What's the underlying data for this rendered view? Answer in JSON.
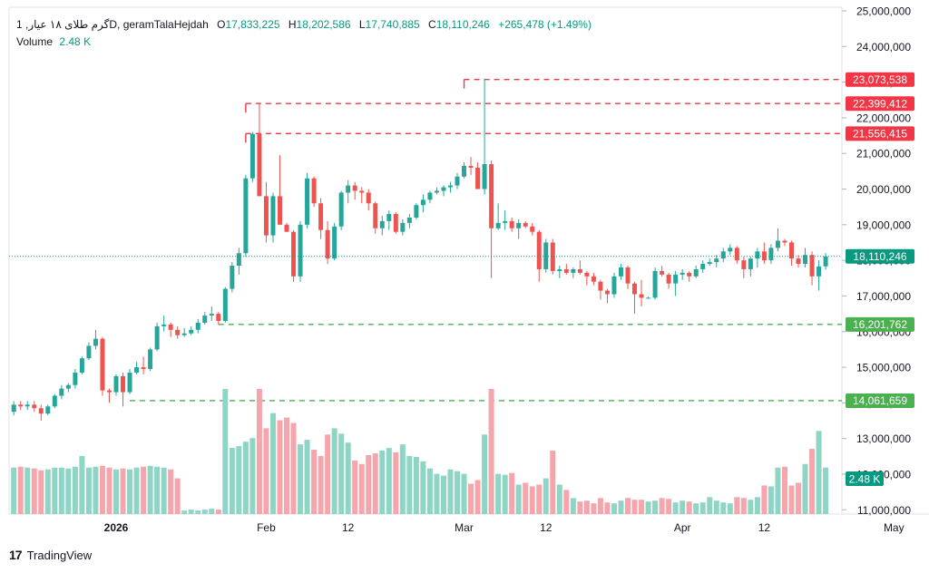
{
  "header": {
    "symbol": "گرم طلای ۱۸ عیار, 1D, geramTalaHejdah",
    "open_label": "O",
    "open": "17,833,225",
    "high_label": "H",
    "high": "18,202,586",
    "low_label": "L",
    "low": "17,740,885",
    "close_label": "C",
    "close": "18,110,246",
    "change": "+265,478 (+1.49%)",
    "volume_label": "Volume",
    "volume": "2.48 K"
  },
  "footer": {
    "brand": "TradingView",
    "logo_icon": "tradingview-logo-icon"
  },
  "colors": {
    "up": "#26a69a",
    "down": "#ef5350",
    "up_vol": "#8fd5c6",
    "down_vol": "#f6a5ac",
    "resistance": "#f23645",
    "support": "#4caf50",
    "last": "#089981"
  },
  "chart_data": {
    "type": "candlestick",
    "ylim": [
      10600000,
      25000000
    ],
    "y_ticks": [
      11000000,
      12000000,
      13000000,
      14000000,
      15000000,
      16000000,
      17000000,
      18000000,
      19000000,
      20000000,
      21000000,
      22000000,
      23000000,
      24000000,
      25000000
    ],
    "y_tick_labels": [
      "11,000,000",
      "12,000,000",
      "13,000,000",
      "14,000,000",
      "15,000,000",
      "16,000,000",
      "17,000,000",
      "18,000,000",
      "19,000,000",
      "20,000,000",
      "21,000,000",
      "22,000,000",
      "23,000,000",
      "24,000,000",
      "25,000,000"
    ],
    "x_labels": [
      {
        "label": "2026",
        "index": 15,
        "bold": true
      },
      {
        "label": "Feb",
        "index": 37
      },
      {
        "label": "12",
        "index": 49
      },
      {
        "label": "Mar",
        "index": 66
      },
      {
        "label": "12",
        "index": 78
      },
      {
        "label": "Apr",
        "index": 98
      },
      {
        "label": "12",
        "index": 110
      },
      {
        "label": "May",
        "index": 129,
        "future": true
      }
    ],
    "levels": [
      {
        "value": 23073538,
        "label": "23,073,538",
        "kind": "resistance",
        "from_index": 66
      },
      {
        "value": 22399412,
        "label": "22,399,412",
        "kind": "resistance",
        "from_index": 34
      },
      {
        "value": 21556415,
        "label": "21,556,415",
        "kind": "resistance",
        "from_index": 34
      },
      {
        "value": 16201762,
        "label": "16,201,762",
        "kind": "support",
        "from_index": 30
      },
      {
        "value": 14061659,
        "label": "14,061,659",
        "kind": "support",
        "from_index": 17
      }
    ],
    "last_price": {
      "value": 18110246,
      "label": "18,110,246"
    },
    "last_volume_label": "2.48 K",
    "volume_max": 14,
    "candles": [
      [
        13.75,
        14.05,
        13.65,
        13.95,
        5.2
      ],
      [
        13.95,
        14.05,
        13.8,
        13.9,
        5.3
      ],
      [
        13.9,
        14.05,
        13.8,
        13.95,
        5.2
      ],
      [
        13.95,
        14.05,
        13.75,
        13.85,
        5.1
      ],
      [
        13.85,
        13.95,
        13.5,
        13.7,
        4.9
      ],
      [
        13.7,
        13.95,
        13.65,
        13.9,
        5.0
      ],
      [
        13.9,
        14.25,
        13.85,
        14.2,
        5.2
      ],
      [
        14.2,
        14.5,
        14.1,
        14.4,
        5.2
      ],
      [
        14.4,
        14.55,
        14.3,
        14.5,
        5.1
      ],
      [
        14.5,
        14.95,
        14.4,
        14.85,
        5.3
      ],
      [
        14.85,
        15.3,
        14.8,
        15.25,
        6.5
      ],
      [
        15.25,
        15.7,
        15.2,
        15.6,
        5.2
      ],
      [
        15.6,
        16.05,
        15.5,
        15.8,
        5.3
      ],
      [
        15.8,
        15.85,
        14.2,
        14.35,
        5.4
      ],
      [
        14.35,
        14.4,
        14.0,
        14.3,
        5.2
      ],
      [
        14.3,
        14.8,
        14.2,
        14.75,
        5.0
      ],
      [
        14.75,
        14.85,
        13.9,
        14.3,
        5.1
      ],
      [
        14.3,
        14.95,
        14.25,
        14.85,
        5.0
      ],
      [
        14.85,
        15.15,
        14.8,
        15.0,
        5.2
      ],
      [
        15.0,
        15.3,
        14.8,
        14.95,
        5.3
      ],
      [
        14.95,
        15.55,
        14.9,
        15.5,
        5.4
      ],
      [
        15.5,
        16.25,
        15.45,
        16.15,
        5.3
      ],
      [
        16.15,
        16.45,
        16.0,
        16.2,
        5.2
      ],
      [
        16.2,
        16.25,
        15.85,
        16.05,
        5.0
      ],
      [
        16.05,
        16.15,
        15.8,
        15.9,
        4.0
      ],
      [
        15.9,
        16.1,
        15.85,
        15.95,
        0.4
      ],
      [
        15.95,
        16.15,
        15.9,
        16.05,
        0.5
      ],
      [
        16.05,
        16.35,
        15.95,
        16.25,
        0.4
      ],
      [
        16.25,
        16.55,
        16.2,
        16.45,
        0.5
      ],
      [
        16.45,
        16.7,
        16.3,
        16.5,
        0.6
      ],
      [
        16.5,
        16.55,
        16.2,
        16.3,
        0.5
      ],
      [
        16.3,
        17.25,
        16.25,
        17.2,
        14.0
      ],
      [
        17.2,
        17.95,
        17.1,
        17.85,
        7.4
      ],
      [
        17.85,
        18.35,
        17.6,
        18.2,
        7.6
      ],
      [
        18.2,
        20.4,
        18.1,
        20.3,
        8.1
      ],
      [
        20.3,
        21.6,
        20.2,
        21.55,
        8.5
      ],
      [
        21.55,
        22.4,
        20.0,
        19.8,
        14.0
      ],
      [
        19.8,
        20.2,
        18.5,
        18.7,
        9.6
      ],
      [
        18.7,
        19.9,
        18.5,
        19.8,
        11.3
      ],
      [
        19.8,
        20.95,
        19.0,
        19.0,
        10.5
      ],
      [
        19.0,
        19.05,
        18.8,
        18.8,
        10.8
      ],
      [
        18.8,
        18.85,
        17.4,
        17.55,
        10.2
      ],
      [
        17.55,
        19.1,
        17.4,
        19.0,
        7.8
      ],
      [
        19.0,
        20.45,
        18.9,
        20.3,
        8.3
      ],
      [
        20.3,
        20.35,
        19.5,
        19.6,
        7.2
      ],
      [
        19.6,
        19.75,
        18.6,
        18.85,
        6.5
      ],
      [
        18.85,
        19.1,
        17.9,
        18.05,
        8.9
      ],
      [
        18.05,
        19.05,
        18.0,
        18.95,
        9.6
      ],
      [
        18.95,
        19.95,
        18.85,
        19.9,
        9.0
      ],
      [
        19.9,
        20.25,
        19.6,
        20.1,
        8.0
      ],
      [
        20.1,
        20.2,
        19.7,
        19.95,
        6.0
      ],
      [
        19.95,
        20.05,
        19.6,
        19.9,
        5.6
      ],
      [
        19.9,
        20.0,
        19.4,
        19.6,
        6.6
      ],
      [
        19.6,
        19.65,
        18.75,
        18.9,
        6.8
      ],
      [
        18.9,
        19.25,
        18.7,
        19.1,
        7.1
      ],
      [
        19.1,
        19.4,
        18.85,
        19.3,
        7.4
      ],
      [
        19.3,
        19.35,
        18.75,
        18.8,
        6.9
      ],
      [
        18.8,
        19.15,
        18.7,
        19.05,
        7.8
      ],
      [
        19.05,
        19.3,
        18.9,
        19.2,
        6.5
      ],
      [
        19.2,
        19.6,
        19.15,
        19.55,
        6.4
      ],
      [
        19.55,
        19.85,
        19.35,
        19.7,
        5.9
      ],
      [
        19.7,
        19.95,
        19.6,
        19.9,
        5.1
      ],
      [
        19.9,
        20.05,
        19.85,
        19.95,
        4.5
      ],
      [
        19.95,
        20.1,
        19.8,
        20.05,
        4.3
      ],
      [
        20.05,
        20.2,
        19.9,
        20.1,
        5.0
      ],
      [
        20.1,
        20.45,
        20.0,
        20.35,
        4.8
      ],
      [
        20.35,
        20.75,
        20.3,
        20.65,
        4.5
      ],
      [
        20.65,
        20.9,
        20.4,
        20.6,
        3.4
      ],
      [
        20.6,
        20.75,
        20.0,
        20.0,
        3.8
      ],
      [
        20.0,
        23.1,
        19.85,
        20.7,
        8.9
      ],
      [
        20.7,
        20.8,
        17.5,
        18.9,
        14.0
      ],
      [
        18.9,
        19.6,
        18.85,
        19.05,
        4.5
      ],
      [
        19.05,
        19.4,
        18.85,
        19.1,
        4.4
      ],
      [
        19.1,
        19.2,
        18.8,
        18.9,
        4.6
      ],
      [
        18.9,
        19.15,
        18.6,
        19.05,
        3.3
      ],
      [
        19.05,
        19.1,
        18.9,
        18.95,
        3.5
      ],
      [
        18.95,
        19.05,
        18.7,
        18.8,
        3.1
      ],
      [
        18.8,
        18.85,
        17.4,
        17.75,
        3.3
      ],
      [
        17.75,
        18.6,
        17.65,
        18.5,
        4.0
      ],
      [
        18.5,
        18.6,
        17.6,
        17.7,
        7.1
      ],
      [
        17.7,
        17.85,
        17.5,
        17.75,
        3.3
      ],
      [
        17.75,
        17.9,
        17.6,
        17.65,
        2.7
      ],
      [
        17.65,
        17.8,
        17.5,
        17.75,
        1.8
      ],
      [
        17.75,
        18.0,
        17.6,
        17.65,
        1.4
      ],
      [
        17.65,
        17.7,
        17.3,
        17.55,
        1.5
      ],
      [
        17.55,
        17.65,
        17.3,
        17.4,
        1.2
      ],
      [
        17.4,
        17.45,
        16.9,
        17.15,
        1.8
      ],
      [
        17.15,
        17.2,
        16.8,
        17.05,
        1.3
      ],
      [
        17.05,
        17.65,
        16.95,
        17.55,
        1.2
      ],
      [
        17.55,
        17.9,
        17.45,
        17.8,
        1.5
      ],
      [
        17.8,
        17.85,
        17.2,
        17.35,
        1.8
      ],
      [
        17.35,
        17.4,
        16.5,
        17.05,
        1.6
      ],
      [
        17.05,
        17.45,
        16.7,
        16.95,
        1.6
      ],
      [
        16.95,
        16.98,
        16.92,
        16.95,
        1.4
      ],
      [
        16.95,
        17.8,
        16.9,
        17.7,
        1.5
      ],
      [
        17.7,
        17.85,
        17.55,
        17.6,
        1.8
      ],
      [
        17.6,
        17.65,
        17.2,
        17.35,
        1.7
      ],
      [
        17.35,
        17.7,
        17.0,
        17.6,
        1.3
      ],
      [
        17.6,
        17.75,
        17.45,
        17.65,
        1.5
      ],
      [
        17.65,
        17.7,
        17.4,
        17.55,
        1.4
      ],
      [
        17.55,
        17.85,
        17.5,
        17.75,
        1.2
      ],
      [
        17.75,
        18.0,
        17.65,
        17.9,
        1.3
      ],
      [
        17.9,
        18.05,
        17.85,
        17.95,
        1.9
      ],
      [
        17.95,
        18.15,
        17.8,
        18.05,
        1.5
      ],
      [
        18.05,
        18.35,
        17.95,
        18.25,
        1.3
      ],
      [
        18.25,
        18.45,
        18.15,
        18.35,
        1.2
      ],
      [
        18.35,
        18.4,
        17.9,
        18.0,
        1.9
      ],
      [
        18.0,
        18.1,
        17.5,
        17.75,
        1.8
      ],
      [
        17.75,
        18.1,
        17.55,
        18.05,
        1.6
      ],
      [
        18.05,
        18.35,
        17.8,
        18.25,
        1.9
      ],
      [
        18.25,
        18.5,
        17.9,
        18.0,
        3.2
      ],
      [
        18.0,
        18.45,
        17.9,
        18.35,
        3.1
      ],
      [
        18.35,
        18.9,
        18.25,
        18.55,
        5.2
      ],
      [
        18.55,
        18.6,
        18.4,
        18.5,
        5.3
      ],
      [
        18.5,
        18.55,
        17.85,
        18.05,
        3.2
      ],
      [
        18.05,
        18.15,
        17.8,
        17.9,
        3.5
      ],
      [
        17.9,
        18.35,
        17.8,
        18.15,
        5.6
      ],
      [
        18.15,
        18.25,
        17.3,
        17.55,
        7.3
      ],
      [
        17.55,
        18.0,
        17.15,
        17.83,
        9.3
      ],
      [
        17.83,
        18.2,
        17.74,
        18.11,
        5.2
      ]
    ]
  }
}
